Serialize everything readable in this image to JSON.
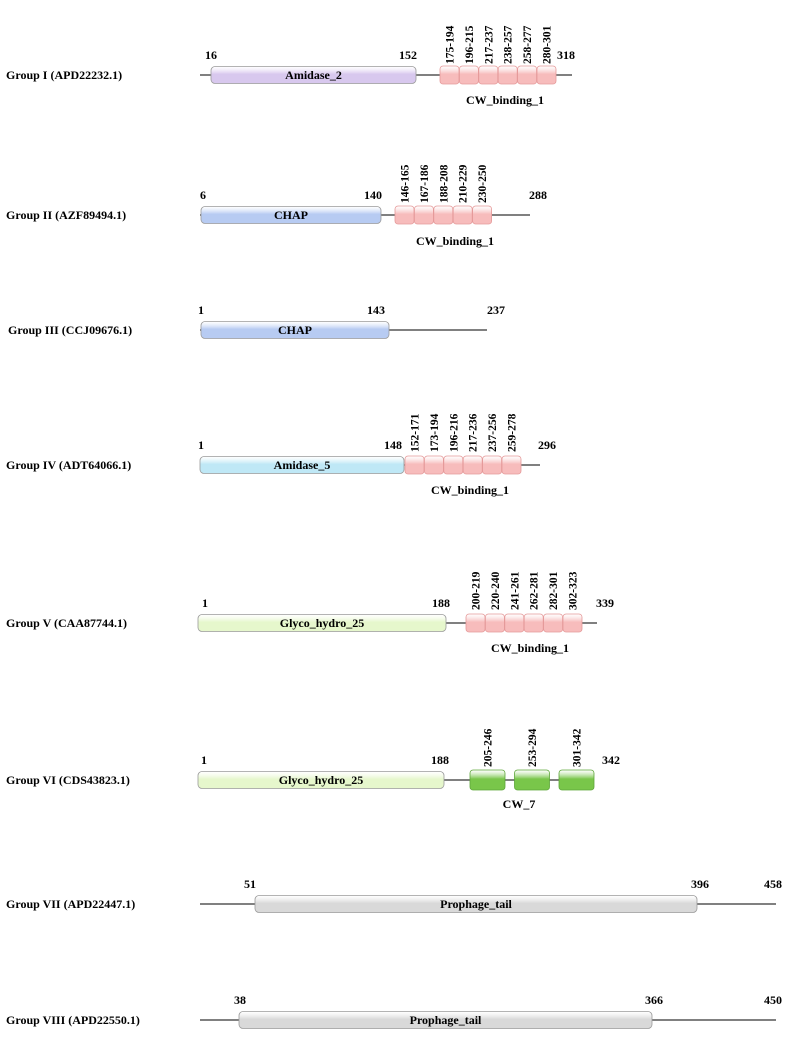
{
  "colors": {
    "Amidase_2": "#d8c8ee",
    "CHAP": "#b7cbf2",
    "Amidase_5": "#bfe8f6",
    "Glyco_hydro_25": "#e6f7cc",
    "CW_binding_1": "#f7bcbc",
    "CW_7": "#79c64a",
    "Prophage_tail": "#d9d9d9",
    "line": "#000000"
  },
  "groups": [
    {
      "label": "Group I (APD22232.1)",
      "start_label": "16",
      "end_label": "318",
      "domains": [
        {
          "name": "Amidase_2",
          "end_label": "152"
        }
      ],
      "repeat_family": "CW_binding_1",
      "repeats": [
        "175-194",
        "196-215",
        "217-237",
        "238-257",
        "258-277",
        "280-301"
      ]
    },
    {
      "label": "Group II (AZF89494.1)",
      "start_label": "6",
      "end_label": "288",
      "domains": [
        {
          "name": "CHAP",
          "end_label": "140"
        }
      ],
      "repeat_family": "CW_binding_1",
      "repeats": [
        "146-165",
        "167-186",
        "188-208",
        "210-229",
        "230-250"
      ]
    },
    {
      "label": "Group III (CCJ09676.1)",
      "start_label": "1",
      "end_label": "237",
      "domains": [
        {
          "name": "CHAP",
          "end_label": "143"
        }
      ],
      "repeat_family": "",
      "repeats": []
    },
    {
      "label": "Group IV (ADT64066.1)",
      "start_label": "1",
      "end_label": "296",
      "domains": [
        {
          "name": "Amidase_5",
          "end_label": "148"
        }
      ],
      "repeat_family": "CW_binding_1",
      "repeats": [
        "152-171",
        "173-194",
        "196-216",
        "217-236",
        "237-256",
        "259-278"
      ]
    },
    {
      "label": "Group V (CAA87744.1)",
      "start_label": "1",
      "end_label": "339",
      "domains": [
        {
          "name": "Glyco_hydro_25",
          "end_label": "188"
        }
      ],
      "repeat_family": "CW_binding_1",
      "repeats": [
        "200-219",
        "220-240",
        "241-261",
        "262-281",
        "282-301",
        "302-323"
      ]
    },
    {
      "label": "Group VI (CDS43823.1)",
      "start_label": "1",
      "end_label": "342",
      "domains": [
        {
          "name": "Glyco_hydro_25",
          "end_label": "188"
        }
      ],
      "repeat_family": "CW_7",
      "repeats": [
        "205-246",
        "253-294",
        "301-342"
      ]
    },
    {
      "label": "Group VII (APD22447.1)",
      "start_label": "51",
      "end_label": "458",
      "domains": [
        {
          "name": "Prophage_tail",
          "end_label": "396"
        }
      ],
      "repeat_family": "",
      "repeats": []
    },
    {
      "label": "Group  VIII (APD22550.1)",
      "start_label": "38",
      "end_label": "450",
      "domains": [
        {
          "name": "Prophage_tail",
          "end_label": "366"
        }
      ],
      "repeat_family": "",
      "repeats": []
    }
  ]
}
